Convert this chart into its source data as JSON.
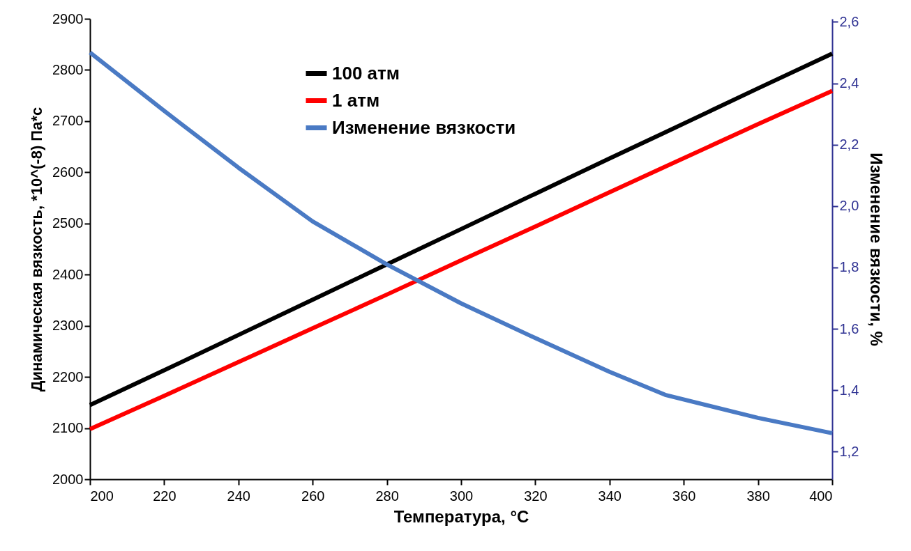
{
  "chart_data": {
    "type": "line",
    "xlabel": "Температура, °C",
    "ylabel": "Динамическая вязкость, *10^(-8) Па*с",
    "y2label": "Изменение вязкости, %",
    "x": [
      200,
      220,
      240,
      260,
      280,
      300,
      320,
      340,
      355,
      380,
      400
    ],
    "xlim": [
      200,
      400
    ],
    "xticks": [
      200,
      220,
      240,
      260,
      280,
      300,
      320,
      340,
      360,
      380,
      400
    ],
    "ylim": [
      2000,
      2900
    ],
    "yticks": [
      2000,
      2100,
      2200,
      2300,
      2400,
      2500,
      2600,
      2700,
      2800,
      2900
    ],
    "y2lim": [
      1.11,
      2.61
    ],
    "y2ticks": [
      {
        "value": 1.2,
        "label": "1,2"
      },
      {
        "value": 1.4,
        "label": "1,4"
      },
      {
        "value": 1.6,
        "label": "1,6"
      },
      {
        "value": 1.8,
        "label": "1,8"
      },
      {
        "value": 2.0,
        "label": "2,0"
      },
      {
        "value": 2.2,
        "label": "2,2"
      },
      {
        "value": 2.4,
        "label": "2,4"
      },
      {
        "value": 2.6,
        "label": "2,6"
      }
    ],
    "series": [
      {
        "name": "100 атм",
        "color": "#000000",
        "values": [
          2145,
          2213,
          2282,
          2351,
          2420,
          2489,
          2558,
          2627,
          2678,
          2764,
          2832
        ]
      },
      {
        "name": "1 атм",
        "color": "#ff0000",
        "values": [
          2098,
          2163,
          2229,
          2295,
          2361,
          2428,
          2494,
          2561,
          2611,
          2694,
          2759
        ]
      },
      {
        "name": "Изменение вязкости",
        "color": "#4a7ac4",
        "axis": "y2",
        "values": [
          2.5,
          2.31,
          2.125,
          1.95,
          1.81,
          1.683,
          1.57,
          1.46,
          1.385,
          1.31,
          1.26
        ]
      }
    ],
    "legend": "top left",
    "grid": false,
    "marker": "none",
    "line_style": "solid"
  }
}
